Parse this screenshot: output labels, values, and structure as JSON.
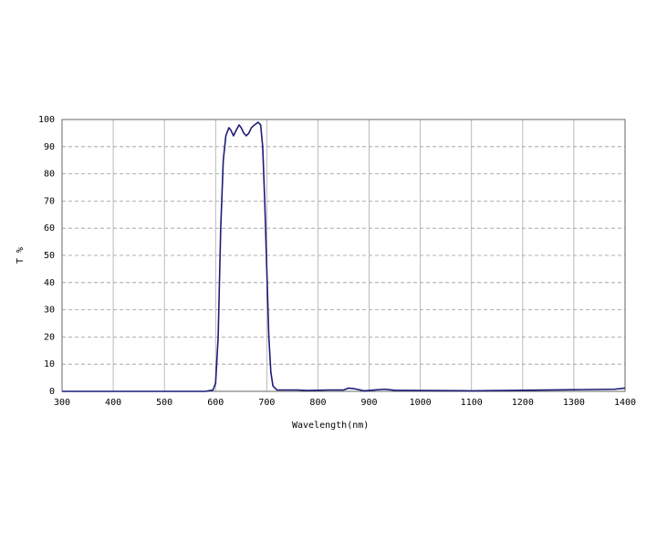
{
  "chart_data": {
    "type": "line",
    "x_label": "Wavelength(nm)",
    "y_label": "T %",
    "xlim": [
      300,
      1400
    ],
    "ylim": [
      0,
      100
    ],
    "xticks": [
      300,
      400,
      500,
      600,
      700,
      800,
      900,
      1000,
      1100,
      1200,
      1300,
      1400
    ],
    "yticks": [
      0,
      10,
      20,
      30,
      40,
      50,
      60,
      70,
      80,
      90,
      100
    ],
    "grid": true,
    "x": [
      300,
      580,
      595,
      600,
      605,
      610,
      615,
      620,
      626,
      630,
      635,
      640,
      646,
      650,
      655,
      660,
      665,
      670,
      676,
      683,
      688,
      692,
      696,
      700,
      704,
      708,
      712,
      720,
      760,
      780,
      820,
      850,
      860,
      870,
      890,
      930,
      950,
      1000,
      1100,
      1200,
      1300,
      1380,
      1400
    ],
    "series": [
      {
        "color": "#1c1c78",
        "values": [
          0,
          0,
          0.5,
          3,
          20,
          60,
          85,
          94,
          97,
          96,
          94,
          96,
          98,
          97,
          95,
          94,
          95,
          97,
          98,
          99,
          98,
          90,
          70,
          45,
          20,
          7,
          2,
          0.5,
          0.5,
          0.3,
          0.5,
          0.5,
          1.2,
          1,
          0.2,
          0.8,
          0.4,
          0.3,
          0.2,
          0.4,
          0.6,
          0.8,
          1.2
        ]
      }
    ]
  }
}
